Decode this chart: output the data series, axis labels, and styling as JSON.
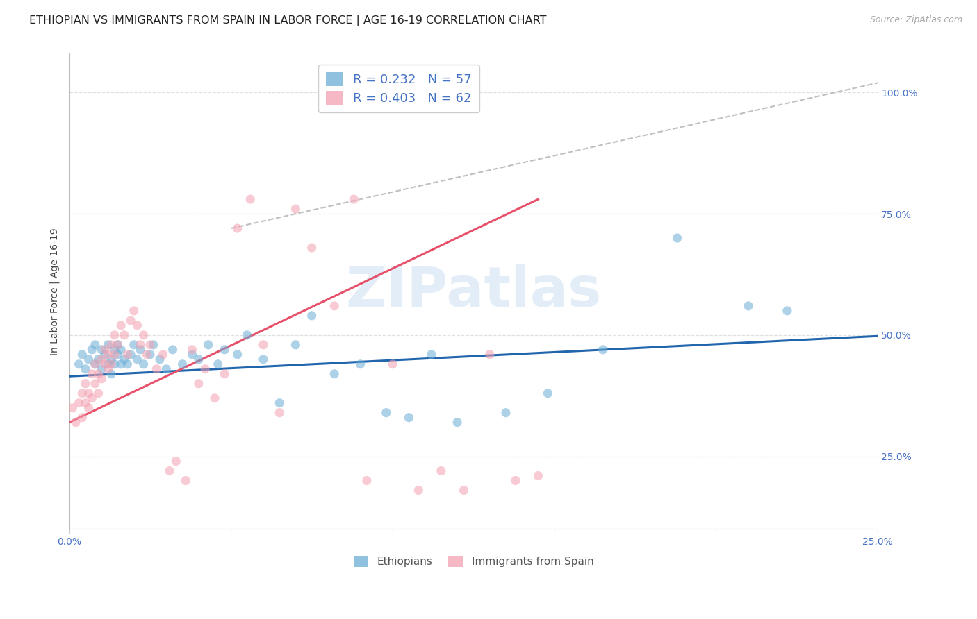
{
  "title": "ETHIOPIAN VS IMMIGRANTS FROM SPAIN IN LABOR FORCE | AGE 16-19 CORRELATION CHART",
  "source": "Source: ZipAtlas.com",
  "ylabel": "In Labor Force | Age 16-19",
  "x_ticks": [
    0.0,
    0.05,
    0.1,
    0.15,
    0.2,
    0.25
  ],
  "x_tick_labels": [
    "0.0%",
    "",
    "",
    "",
    "",
    "25.0%"
  ],
  "y_ticks": [
    0.25,
    0.5,
    0.75,
    1.0
  ],
  "y_tick_labels": [
    "25.0%",
    "50.0%",
    "75.0%",
    "100.0%"
  ],
  "xlim": [
    0.0,
    0.25
  ],
  "ylim": [
    0.1,
    1.08
  ],
  "blue_R": 0.232,
  "blue_N": 57,
  "pink_R": 0.403,
  "pink_N": 62,
  "blue_color": "#6baed6",
  "pink_color": "#f4a0b0",
  "trend_blue_color": "#2166ac",
  "trend_pink_color": "#e8506a",
  "ref_line_color": "#c0c0c0",
  "watermark": "ZIPatlas",
  "legend_label_blue": "Ethiopians",
  "legend_label_pink": "Immigrants from Spain",
  "blue_scatter_x": [
    0.003,
    0.004,
    0.005,
    0.006,
    0.007,
    0.008,
    0.008,
    0.009,
    0.01,
    0.01,
    0.011,
    0.012,
    0.012,
    0.013,
    0.013,
    0.014,
    0.014,
    0.015,
    0.015,
    0.016,
    0.016,
    0.017,
    0.018,
    0.019,
    0.02,
    0.021,
    0.022,
    0.023,
    0.025,
    0.026,
    0.028,
    0.03,
    0.032,
    0.035,
    0.038,
    0.04,
    0.043,
    0.046,
    0.048,
    0.052,
    0.055,
    0.06,
    0.065,
    0.07,
    0.075,
    0.082,
    0.09,
    0.098,
    0.105,
    0.112,
    0.12,
    0.135,
    0.148,
    0.165,
    0.188,
    0.21,
    0.222
  ],
  "blue_scatter_y": [
    0.44,
    0.46,
    0.43,
    0.45,
    0.47,
    0.44,
    0.48,
    0.45,
    0.43,
    0.47,
    0.46,
    0.44,
    0.48,
    0.45,
    0.42,
    0.47,
    0.44,
    0.46,
    0.48,
    0.44,
    0.47,
    0.45,
    0.44,
    0.46,
    0.48,
    0.45,
    0.47,
    0.44,
    0.46,
    0.48,
    0.45,
    0.43,
    0.47,
    0.44,
    0.46,
    0.45,
    0.48,
    0.44,
    0.47,
    0.46,
    0.5,
    0.45,
    0.36,
    0.48,
    0.54,
    0.42,
    0.44,
    0.34,
    0.33,
    0.46,
    0.32,
    0.34,
    0.38,
    0.47,
    0.7,
    0.56,
    0.55
  ],
  "pink_scatter_x": [
    0.001,
    0.002,
    0.003,
    0.004,
    0.004,
    0.005,
    0.005,
    0.006,
    0.006,
    0.007,
    0.007,
    0.008,
    0.008,
    0.009,
    0.009,
    0.01,
    0.01,
    0.011,
    0.011,
    0.012,
    0.012,
    0.013,
    0.013,
    0.014,
    0.014,
    0.015,
    0.016,
    0.017,
    0.018,
    0.019,
    0.02,
    0.021,
    0.022,
    0.023,
    0.024,
    0.025,
    0.027,
    0.029,
    0.031,
    0.033,
    0.036,
    0.038,
    0.04,
    0.042,
    0.045,
    0.048,
    0.052,
    0.056,
    0.06,
    0.065,
    0.07,
    0.075,
    0.082,
    0.088,
    0.092,
    0.1,
    0.108,
    0.115,
    0.122,
    0.13,
    0.138,
    0.145
  ],
  "pink_scatter_y": [
    0.35,
    0.32,
    0.36,
    0.33,
    0.38,
    0.36,
    0.4,
    0.35,
    0.38,
    0.42,
    0.37,
    0.4,
    0.44,
    0.38,
    0.42,
    0.45,
    0.41,
    0.44,
    0.47,
    0.43,
    0.46,
    0.44,
    0.48,
    0.46,
    0.5,
    0.48,
    0.52,
    0.5,
    0.46,
    0.53,
    0.55,
    0.52,
    0.48,
    0.5,
    0.46,
    0.48,
    0.43,
    0.46,
    0.22,
    0.24,
    0.2,
    0.47,
    0.4,
    0.43,
    0.37,
    0.42,
    0.72,
    0.78,
    0.48,
    0.34,
    0.76,
    0.68,
    0.56,
    0.78,
    0.2,
    0.44,
    0.18,
    0.22,
    0.18,
    0.46,
    0.2,
    0.21
  ],
  "blue_trend_x": [
    0.0,
    0.25
  ],
  "blue_trend_y": [
    0.415,
    0.498
  ],
  "pink_trend_x": [
    0.0,
    0.145
  ],
  "pink_trend_y": [
    0.32,
    0.78
  ],
  "ref_line_x": [
    0.05,
    0.25
  ],
  "ref_line_y": [
    0.72,
    1.02
  ],
  "background_color": "#ffffff",
  "grid_color": "#e0e0e0",
  "title_color": "#222222",
  "axis_label_color": "#444444",
  "right_tick_color": "#4472c4",
  "source_color": "#aaaaaa",
  "title_fontsize": 11.5,
  "axis_label_fontsize": 10,
  "tick_fontsize": 10,
  "legend_fontsize": 13
}
